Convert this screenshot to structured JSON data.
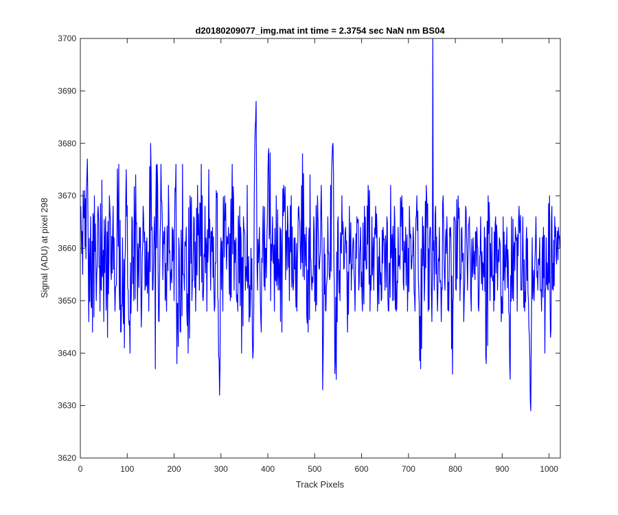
{
  "chart_data": {
    "type": "line",
    "title": "d20180209077_img.mat int time = 2.3754 sec  NaN nm BS04",
    "xlabel": "Track Pixels",
    "ylabel": "Signal (ADU) at pixel 298",
    "xlim": [
      0,
      1024
    ],
    "ylim": [
      3620,
      3700
    ],
    "xticks": [
      0,
      100,
      200,
      300,
      400,
      500,
      600,
      700,
      800,
      900,
      1000
    ],
    "yticks": [
      3620,
      3630,
      3640,
      3650,
      3660,
      3670,
      3680,
      3690,
      3700
    ],
    "grid": false,
    "legend": "none",
    "series": [
      {
        "color": "#0000ff",
        "x_start": 1,
        "x_step": 1,
        "anchors": [
          [
            1,
            3668
          ],
          [
            5,
            3655
          ],
          [
            9,
            3671
          ],
          [
            12,
            3658
          ],
          [
            15,
            3677
          ],
          [
            18,
            3646
          ],
          [
            22,
            3666
          ],
          [
            26,
            3644
          ],
          [
            30,
            3670
          ],
          [
            34,
            3650
          ],
          [
            38,
            3668
          ],
          [
            42,
            3648
          ],
          [
            46,
            3673
          ],
          [
            50,
            3646
          ],
          [
            54,
            3666
          ],
          [
            58,
            3643
          ],
          [
            62,
            3670
          ],
          [
            66,
            3654
          ],
          [
            70,
            3668
          ],
          [
            74,
            3648
          ],
          [
            78,
            3660
          ],
          [
            82,
            3676
          ],
          [
            86,
            3644
          ],
          [
            90,
            3662
          ],
          [
            94,
            3641
          ],
          [
            98,
            3675
          ],
          [
            102,
            3652
          ],
          [
            106,
            3640
          ],
          [
            110,
            3666
          ],
          [
            114,
            3650
          ],
          [
            118,
            3674
          ],
          [
            122,
            3648
          ],
          [
            126,
            3664
          ],
          [
            130,
            3645
          ],
          [
            134,
            3668
          ],
          [
            138,
            3652
          ],
          [
            142,
            3662
          ],
          [
            146,
            3648
          ],
          [
            150,
            3680
          ],
          [
            154,
            3652
          ],
          [
            158,
            3666
          ],
          [
            160,
            3637
          ],
          [
            164,
            3676
          ],
          [
            168,
            3646
          ],
          [
            172,
            3676
          ],
          [
            176,
            3654
          ],
          [
            180,
            3664
          ],
          [
            184,
            3648
          ],
          [
            188,
            3672
          ],
          [
            192,
            3652
          ],
          [
            196,
            3664
          ],
          [
            200,
            3650
          ],
          [
            204,
            3676
          ],
          [
            206,
            3638
          ],
          [
            210,
            3662
          ],
          [
            214,
            3644
          ],
          [
            218,
            3676
          ],
          [
            222,
            3652
          ],
          [
            226,
            3664
          ],
          [
            230,
            3640
          ],
          [
            234,
            3670
          ],
          [
            238,
            3650
          ],
          [
            242,
            3666
          ],
          [
            246,
            3648
          ],
          [
            250,
            3672
          ],
          [
            254,
            3652
          ],
          [
            258,
            3676
          ],
          [
            262,
            3650
          ],
          [
            266,
            3668
          ],
          [
            270,
            3648
          ],
          [
            274,
            3675
          ],
          [
            278,
            3652
          ],
          [
            282,
            3664
          ],
          [
            286,
            3648
          ],
          [
            290,
            3671
          ],
          [
            294,
            3650
          ],
          [
            297,
            3632
          ],
          [
            300,
            3662
          ],
          [
            304,
            3648
          ],
          [
            308,
            3670
          ],
          [
            312,
            3656
          ],
          [
            316,
            3664
          ],
          [
            320,
            3650
          ],
          [
            324,
            3676
          ],
          [
            328,
            3652
          ],
          [
            332,
            3662
          ],
          [
            336,
            3648
          ],
          [
            340,
            3668
          ],
          [
            344,
            3640
          ],
          [
            348,
            3666
          ],
          [
            352,
            3652
          ],
          [
            356,
            3672
          ],
          [
            360,
            3646
          ],
          [
            364,
            3660
          ],
          [
            368,
            3639
          ],
          [
            372,
            3678
          ],
          [
            375,
            3688
          ],
          [
            378,
            3652
          ],
          [
            382,
            3664
          ],
          [
            386,
            3644
          ],
          [
            390,
            3668
          ],
          [
            394,
            3652
          ],
          [
            398,
            3662
          ],
          [
            402,
            3679
          ],
          [
            406,
            3650
          ],
          [
            410,
            3666
          ],
          [
            414,
            3648
          ],
          [
            418,
            3670
          ],
          [
            422,
            3652
          ],
          [
            426,
            3664
          ],
          [
            430,
            3644
          ],
          [
            434,
            3672
          ],
          [
            438,
            3654
          ],
          [
            442,
            3668
          ],
          [
            446,
            3650
          ],
          [
            450,
            3670
          ],
          [
            454,
            3652
          ],
          [
            458,
            3662
          ],
          [
            462,
            3648
          ],
          [
            466,
            3668
          ],
          [
            470,
            3656
          ],
          [
            474,
            3678
          ],
          [
            478,
            3654
          ],
          [
            482,
            3664
          ],
          [
            486,
            3644
          ],
          [
            490,
            3674
          ],
          [
            494,
            3652
          ],
          [
            498,
            3666
          ],
          [
            502,
            3648
          ],
          [
            506,
            3670
          ],
          [
            510,
            3656
          ],
          [
            514,
            3672
          ],
          [
            517,
            3633
          ],
          [
            520,
            3662
          ],
          [
            524,
            3648
          ],
          [
            528,
            3666
          ],
          [
            532,
            3654
          ],
          [
            536,
            3674
          ],
          [
            539,
            3680
          ],
          [
            542,
            3652
          ],
          [
            546,
            3635
          ],
          [
            550,
            3666
          ],
          [
            554,
            3650
          ],
          [
            558,
            3670
          ],
          [
            562,
            3656
          ],
          [
            566,
            3664
          ],
          [
            570,
            3644
          ],
          [
            574,
            3668
          ],
          [
            578,
            3652
          ],
          [
            582,
            3662
          ],
          [
            586,
            3648
          ],
          [
            590,
            3666
          ],
          [
            594,
            3652
          ],
          [
            598,
            3664
          ],
          [
            602,
            3648
          ],
          [
            606,
            3668
          ],
          [
            610,
            3656
          ],
          [
            614,
            3672
          ],
          [
            618,
            3648
          ],
          [
            622,
            3666
          ],
          [
            626,
            3652
          ],
          [
            630,
            3668
          ],
          [
            634,
            3648
          ],
          [
            638,
            3662
          ],
          [
            642,
            3650
          ],
          [
            646,
            3664
          ],
          [
            650,
            3652
          ],
          [
            654,
            3666
          ],
          [
            658,
            3648
          ],
          [
            662,
            3672
          ],
          [
            666,
            3650
          ],
          [
            670,
            3668
          ],
          [
            674,
            3648
          ],
          [
            678,
            3664
          ],
          [
            682,
            3656
          ],
          [
            686,
            3670
          ],
          [
            690,
            3652
          ],
          [
            694,
            3664
          ],
          [
            698,
            3648
          ],
          [
            702,
            3668
          ],
          [
            706,
            3656
          ],
          [
            710,
            3664
          ],
          [
            714,
            3648
          ],
          [
            718,
            3670
          ],
          [
            722,
            3652
          ],
          [
            726,
            3637
          ],
          [
            730,
            3666
          ],
          [
            734,
            3650
          ],
          [
            738,
            3672
          ],
          [
            742,
            3648
          ],
          [
            746,
            3664
          ],
          [
            750,
            3646
          ],
          [
            752,
            3700
          ],
          [
            755,
            3652
          ],
          [
            758,
            3668
          ],
          [
            762,
            3648
          ],
          [
            766,
            3664
          ],
          [
            770,
            3646
          ],
          [
            774,
            3670
          ],
          [
            778,
            3652
          ],
          [
            782,
            3666
          ],
          [
            786,
            3648
          ],
          [
            790,
            3664
          ],
          [
            794,
            3636
          ],
          [
            798,
            3666
          ],
          [
            802,
            3652
          ],
          [
            806,
            3670
          ],
          [
            810,
            3650
          ],
          [
            814,
            3664
          ],
          [
            818,
            3646
          ],
          [
            822,
            3668
          ],
          [
            826,
            3652
          ],
          [
            830,
            3666
          ],
          [
            834,
            3648
          ],
          [
            838,
            3662
          ],
          [
            842,
            3654
          ],
          [
            846,
            3664
          ],
          [
            850,
            3648
          ],
          [
            854,
            3666
          ],
          [
            858,
            3652
          ],
          [
            862,
            3664
          ],
          [
            866,
            3638
          ],
          [
            870,
            3670
          ],
          [
            874,
            3650
          ],
          [
            878,
            3664
          ],
          [
            882,
            3648
          ],
          [
            886,
            3666
          ],
          [
            890,
            3652
          ],
          [
            894,
            3662
          ],
          [
            898,
            3646
          ],
          [
            902,
            3666
          ],
          [
            906,
            3652
          ],
          [
            910,
            3664
          ],
          [
            914,
            3648
          ],
          [
            917,
            3635
          ],
          [
            920,
            3666
          ],
          [
            924,
            3650
          ],
          [
            928,
            3664
          ],
          [
            932,
            3648
          ],
          [
            936,
            3668
          ],
          [
            940,
            3652
          ],
          [
            944,
            3666
          ],
          [
            948,
            3648
          ],
          [
            952,
            3664
          ],
          [
            956,
            3650
          ],
          [
            959,
            3639
          ],
          [
            961,
            3629
          ],
          [
            964,
            3662
          ],
          [
            968,
            3650
          ],
          [
            972,
            3666
          ],
          [
            976,
            3652
          ],
          [
            980,
            3662
          ],
          [
            984,
            3648
          ],
          [
            988,
            3664
          ],
          [
            991,
            3640
          ],
          [
            994,
            3662
          ],
          [
            998,
            3652
          ],
          [
            1001,
            3670
          ],
          [
            1003,
            3643
          ],
          [
            1006,
            3668
          ],
          [
            1009,
            3652
          ],
          [
            1012,
            3666
          ],
          [
            1016,
            3657
          ],
          [
            1020,
            3664
          ],
          [
            1024,
            3660
          ]
        ]
      }
    ]
  }
}
